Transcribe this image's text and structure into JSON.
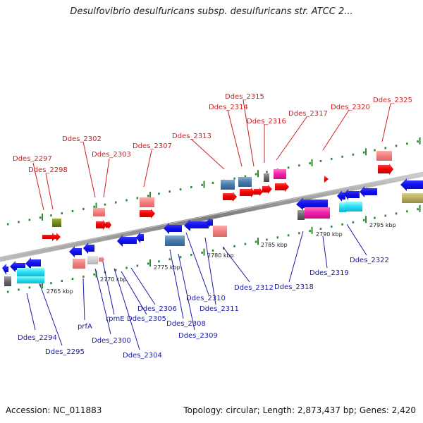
{
  "title": "Desulfovibrio desulfuricans subsp. desulfuricans str. ATCC 2...",
  "footer": {
    "accession": "Accession: NC_011883",
    "stats": "Topology: circular; Length: 2,873,437 bp; Genes: 2,420"
  },
  "colors": {
    "top_label": "#cc2222",
    "bottom_label": "#1a1aaa",
    "backbone": "#8a8a8a",
    "tick": "#2f8a2f"
  },
  "scale_labels": [
    "2765 kbp",
    "2770 kbp",
    "2775 kbp",
    "2780 kbp",
    "2785 kbp",
    "2790 kbp",
    "2795 kbp"
  ],
  "top_gene_labels": [
    "Ddes_2297",
    "Ddes_2298",
    "Ddes_2302",
    "Ddes_2303",
    "Ddes_2307",
    "Ddes_2313",
    "Ddes_2314",
    "Ddes_2315",
    "Ddes_2316",
    "Ddes_2317",
    "Ddes_2320",
    "Ddes_2325"
  ],
  "bottom_gene_labels": [
    "Ddes_2294",
    "Ddes_2295",
    "prfA",
    "Ddes_2300",
    "rpmE",
    "Ddes_2304",
    "Ddes_2305",
    "Ddes_2306",
    "Ddes_2308",
    "Ddes_2309",
    "Ddes_2310",
    "Ddes_2311",
    "Ddes_2312",
    "Ddes_2318",
    "Ddes_2319",
    "Ddes_2322"
  ]
}
